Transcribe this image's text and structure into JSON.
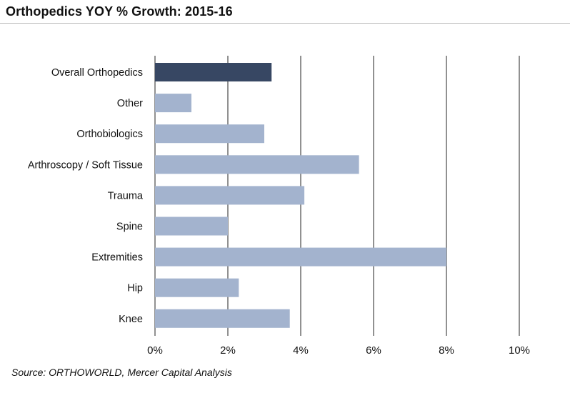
{
  "title": "Orthopedics YOY % Growth: 2015-16",
  "source": "Source: ORTHOWORLD, Mercer Capital Analysis",
  "colors": {
    "highlight_bar": "#374763",
    "bar": "#a3b3ce",
    "gridline": "#858585",
    "text": "#111111"
  },
  "chart_data": {
    "type": "bar",
    "orientation": "horizontal",
    "title": "Orthopedics YOY % Growth: 2015-16",
    "xlabel": "",
    "ylabel": "",
    "categories": [
      "Overall Orthopedics",
      "Other",
      "Orthobiologics",
      "Arthroscopy / Soft Tissue",
      "Trauma",
      "Spine",
      "Extremities",
      "Hip",
      "Knee"
    ],
    "values": [
      3.2,
      1.0,
      3.0,
      5.6,
      4.1,
      2.0,
      8.0,
      2.3,
      3.7
    ],
    "highlight": [
      "Overall Orthopedics"
    ],
    "xlim": [
      0,
      10
    ],
    "xticks": [
      0,
      2,
      4,
      6,
      8,
      10
    ],
    "xtick_labels": [
      "0%",
      "2%",
      "4%",
      "6%",
      "8%",
      "10%"
    ],
    "grid": "vertical",
    "legend": "none"
  }
}
